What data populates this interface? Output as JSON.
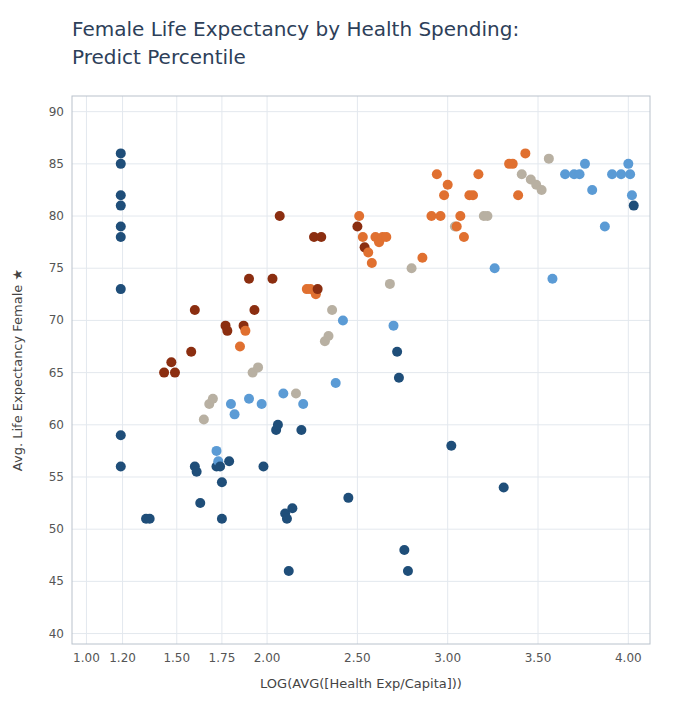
{
  "chart_data": {
    "type": "scatter",
    "title": "Female Life Expectancy by Health Spending:",
    "subtitle": "Predict Percentile",
    "x_label": "LOG(AVG([Health Exp/Capita]))",
    "y_label": "Avg. Life Expectancy Female ★",
    "xlim": [
      0.92,
      4.12
    ],
    "ylim": [
      39.0,
      91.5
    ],
    "xticks": [
      {
        "value": 1.0,
        "label": "1.00"
      },
      {
        "value": 1.2,
        "label": "1.20"
      },
      {
        "value": 1.5,
        "label": "1.50"
      },
      {
        "value": 1.75,
        "label": "1.75"
      },
      {
        "value": 2.0,
        "label": "2.00"
      },
      {
        "value": 2.5,
        "label": "2.50"
      },
      {
        "value": 3.0,
        "label": "3.00"
      },
      {
        "value": 3.5,
        "label": "3.50"
      },
      {
        "value": 4.0,
        "label": "4.00"
      }
    ],
    "yticks": [
      40,
      45,
      50,
      55,
      60,
      65,
      70,
      75,
      80,
      85,
      90
    ],
    "grid": true,
    "x": [
      1.19,
      1.19,
      1.19,
      1.19,
      1.19,
      1.19,
      1.19,
      1.19,
      1.19,
      1.33,
      1.35,
      1.43,
      1.47,
      1.49,
      1.58,
      1.6,
      1.6,
      1.61,
      1.63,
      1.65,
      1.68,
      1.7,
      1.72,
      1.72,
      1.73,
      1.74,
      1.75,
      1.75,
      1.77,
      1.78,
      1.79,
      1.8,
      1.82,
      1.85,
      1.87,
      1.88,
      1.9,
      1.9,
      1.92,
      1.93,
      1.95,
      1.97,
      1.98,
      2.03,
      2.05,
      2.06,
      2.07,
      2.09,
      2.1,
      2.11,
      2.12,
      2.14,
      2.16,
      2.19,
      2.2,
      2.22,
      2.24,
      2.26,
      2.27,
      2.28,
      2.3,
      2.32,
      2.34,
      2.36,
      2.38,
      2.42,
      2.45,
      2.5,
      2.51,
      2.53,
      2.54,
      2.56,
      2.58,
      2.6,
      2.62,
      2.64,
      2.66,
      2.68,
      2.7,
      2.72,
      2.73,
      2.76,
      2.78,
      2.8,
      2.86,
      2.91,
      2.94,
      2.96,
      2.98,
      3.0,
      3.02,
      3.04,
      3.05,
      3.07,
      3.09,
      3.12,
      3.14,
      3.17,
      3.2,
      3.22,
      3.26,
      3.31,
      3.34,
      3.36,
      3.39,
      3.41,
      3.43,
      3.46,
      3.49,
      3.52,
      3.56,
      3.58,
      3.65,
      3.7,
      3.73,
      3.76,
      3.8,
      3.87,
      3.91,
      3.96,
      4.0,
      4.01,
      4.02,
      4.03
    ],
    "values": [
      86.0,
      85.0,
      82.0,
      81.0,
      79.0,
      78.0,
      73.0,
      59.0,
      56.0,
      51.0,
      51.0,
      65.0,
      66.0,
      65.0,
      67.0,
      71.0,
      56.0,
      55.5,
      52.5,
      60.5,
      62.0,
      62.5,
      56.0,
      57.5,
      56.5,
      56.0,
      54.5,
      51.0,
      69.5,
      69.0,
      56.5,
      62.0,
      61.0,
      67.5,
      69.5,
      69.0,
      74.0,
      62.5,
      65.0,
      71.0,
      65.5,
      62.0,
      56.0,
      74.0,
      59.5,
      60.0,
      80.0,
      63.0,
      51.5,
      51.0,
      46.0,
      52.0,
      63.0,
      59.5,
      62.0,
      73.0,
      73.0,
      78.0,
      72.5,
      73.0,
      78.0,
      68.0,
      68.5,
      71.0,
      64.0,
      70.0,
      53.0,
      79.0,
      80.0,
      78.0,
      77.0,
      76.5,
      75.5,
      78.0,
      77.5,
      78.0,
      78.0,
      73.5,
      69.5,
      67.0,
      64.5,
      48.0,
      46.0,
      75.0,
      76.0,
      80.0,
      84.0,
      80.0,
      82.0,
      83.0,
      58.0,
      79.0,
      79.0,
      80.0,
      78.0,
      82.0,
      82.0,
      84.0,
      80.0,
      80.0,
      75.0,
      54.0,
      85.0,
      85.0,
      82.0,
      84.0,
      86.0,
      83.5,
      83.0,
      82.5,
      85.5,
      74.0,
      84.0,
      84.0,
      84.0,
      85.0,
      82.5,
      79.0,
      84.0,
      84.0,
      85.0,
      84.0,
      82.0,
      81.0
    ],
    "colors": [
      "#1f4e79",
      "#1f4e79",
      "#1f4e79",
      "#1f4e79",
      "#1f4e79",
      "#1f4e79",
      "#1f4e79",
      "#1f4e79",
      "#1f4e79",
      "#1f4e79",
      "#1f4e79",
      "#8b2e10",
      "#8b2e10",
      "#8b2e10",
      "#8b2e10",
      "#8b2e10",
      "#1f4e79",
      "#1f4e79",
      "#1f4e79",
      "#b8b0a2",
      "#b8b0a2",
      "#b8b0a2",
      "#1f4e79",
      "#5b9bd5",
      "#5b9bd5",
      "#1f4e79",
      "#1f4e79",
      "#1f4e79",
      "#8b2e10",
      "#8b2e10",
      "#1f4e79",
      "#5b9bd5",
      "#5b9bd5",
      "#e07030",
      "#8b2e10",
      "#e07030",
      "#8b2e10",
      "#5b9bd5",
      "#b8b0a2",
      "#8b2e10",
      "#b8b0a2",
      "#5b9bd5",
      "#1f4e79",
      "#8b2e10",
      "#1f4e79",
      "#1f4e79",
      "#8b2e10",
      "#5b9bd5",
      "#1f4e79",
      "#1f4e79",
      "#1f4e79",
      "#1f4e79",
      "#b8b0a2",
      "#1f4e79",
      "#5b9bd5",
      "#e07030",
      "#e07030",
      "#8b2e10",
      "#e07030",
      "#8b2e10",
      "#8b2e10",
      "#b8b0a2",
      "#b8b0a2",
      "#b8b0a2",
      "#5b9bd5",
      "#5b9bd5",
      "#1f4e79",
      "#8b2e10",
      "#e07030",
      "#e07030",
      "#8b2e10",
      "#e07030",
      "#e07030",
      "#e07030",
      "#e07030",
      "#e07030",
      "#e07030",
      "#b8b0a2",
      "#5b9bd5",
      "#1f4e79",
      "#1f4e79",
      "#1f4e79",
      "#1f4e79",
      "#b8b0a2",
      "#e07030",
      "#e07030",
      "#e07030",
      "#e07030",
      "#e07030",
      "#e07030",
      "#1f4e79",
      "#b8b0a2",
      "#e07030",
      "#e07030",
      "#e07030",
      "#e07030",
      "#e07030",
      "#e07030",
      "#b8b0a2",
      "#b8b0a2",
      "#5b9bd5",
      "#1f4e79",
      "#e07030",
      "#e07030",
      "#e07030",
      "#b8b0a2",
      "#e07030",
      "#b8b0a2",
      "#b8b0a2",
      "#b8b0a2",
      "#b8b0a2",
      "#5b9bd5",
      "#5b9bd5",
      "#5b9bd5",
      "#5b9bd5",
      "#5b9bd5",
      "#5b9bd5",
      "#5b9bd5",
      "#5b9bd5",
      "#5b9bd5",
      "#5b9bd5",
      "#5b9bd5",
      "#5b9bd5",
      "#1f4e79"
    ]
  }
}
